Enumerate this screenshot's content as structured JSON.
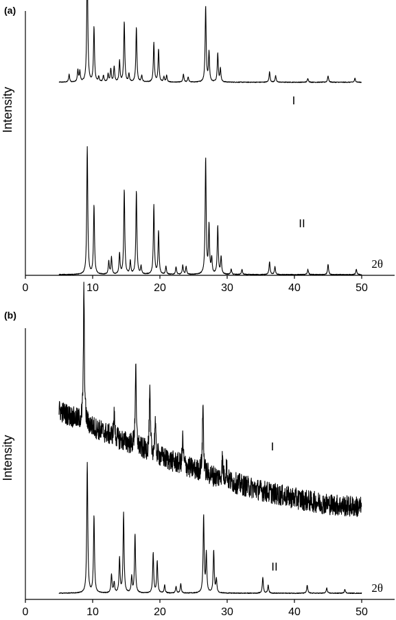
{
  "chart_data": [
    {
      "panel_label": "(a)",
      "type": "line",
      "ylabel": "Intensity",
      "xlabel": "2θ",
      "xlim": [
        0,
        55
      ],
      "xticks": [
        0,
        10,
        20,
        30,
        40,
        50
      ],
      "series": [
        {
          "name": "I",
          "x_range": [
            5,
            50
          ],
          "baseline": 0.48,
          "peaks": [
            [
              6.5,
              0.06
            ],
            [
              7.8,
              0.09
            ],
            [
              8.1,
              0.08
            ],
            [
              9.2,
              0.95
            ],
            [
              10.2,
              0.42
            ],
            [
              10.9,
              0.04
            ],
            [
              11.6,
              0.05
            ],
            [
              12.3,
              0.06
            ],
            [
              12.7,
              0.1
            ],
            [
              13.2,
              0.12
            ],
            [
              14.0,
              0.16
            ],
            [
              14.7,
              0.46
            ],
            [
              15.4,
              0.06
            ],
            [
              16.5,
              0.42
            ],
            [
              17.3,
              0.05
            ],
            [
              19.1,
              0.3
            ],
            [
              19.8,
              0.25
            ],
            [
              20.6,
              0.04
            ],
            [
              21.0,
              0.05
            ],
            [
              23.5,
              0.06
            ],
            [
              24.2,
              0.04
            ],
            [
              26.8,
              0.58
            ],
            [
              27.3,
              0.23
            ],
            [
              28.6,
              0.22
            ],
            [
              29.0,
              0.1
            ],
            [
              36.3,
              0.08
            ],
            [
              37.2,
              0.05
            ],
            [
              42.0,
              0.03
            ],
            [
              45.0,
              0.05
            ],
            [
              49.0,
              0.03
            ]
          ]
        },
        {
          "name": "II",
          "x_range": [
            5,
            50
          ],
          "baseline": 0.0,
          "peaks": [
            [
              9.2,
              0.98
            ],
            [
              10.2,
              0.53
            ],
            [
              12.4,
              0.1
            ],
            [
              12.8,
              0.13
            ],
            [
              14.0,
              0.16
            ],
            [
              14.7,
              0.65
            ],
            [
              15.6,
              0.1
            ],
            [
              16.5,
              0.64
            ],
            [
              17.2,
              0.06
            ],
            [
              19.1,
              0.53
            ],
            [
              19.8,
              0.33
            ],
            [
              20.9,
              0.06
            ],
            [
              22.4,
              0.06
            ],
            [
              23.4,
              0.07
            ],
            [
              23.9,
              0.06
            ],
            [
              26.8,
              0.89
            ],
            [
              27.3,
              0.37
            ],
            [
              27.7,
              0.12
            ],
            [
              28.6,
              0.37
            ],
            [
              29.1,
              0.13
            ],
            [
              30.6,
              0.04
            ],
            [
              32.2,
              0.04
            ],
            [
              36.3,
              0.1
            ],
            [
              37.1,
              0.06
            ],
            [
              42.0,
              0.04
            ],
            [
              45.0,
              0.08
            ],
            [
              49.2,
              0.04
            ]
          ]
        }
      ]
    },
    {
      "panel_label": "(b)",
      "type": "line",
      "ylabel": "Intensity",
      "xlabel": "2θ",
      "xlim": [
        0,
        55
      ],
      "xticks": [
        0,
        10,
        20,
        30,
        40,
        50
      ],
      "series": [
        {
          "name": "I",
          "x_range": [
            5,
            50
          ],
          "baseline_start": 0.68,
          "baseline_end": 0.32,
          "noise": 0.04,
          "peaks": [
            [
              8.7,
              0.5
            ],
            [
              13.2,
              0.08
            ],
            [
              16.4,
              0.3
            ],
            [
              18.5,
              0.22
            ],
            [
              19.3,
              0.12
            ],
            [
              23.4,
              0.1
            ],
            [
              26.4,
              0.26
            ],
            [
              29.3,
              0.08
            ],
            [
              29.9,
              0.06
            ]
          ]
        },
        {
          "name": "II",
          "x_range": [
            5,
            50
          ],
          "baseline": 0.0,
          "peaks": [
            [
              9.2,
              0.98
            ],
            [
              10.2,
              0.58
            ],
            [
              12.8,
              0.14
            ],
            [
              13.2,
              0.08
            ],
            [
              14.0,
              0.26
            ],
            [
              14.6,
              0.6
            ],
            [
              15.8,
              0.12
            ],
            [
              16.3,
              0.44
            ],
            [
              19.0,
              0.3
            ],
            [
              19.6,
              0.24
            ],
            [
              20.7,
              0.06
            ],
            [
              22.4,
              0.05
            ],
            [
              23.1,
              0.07
            ],
            [
              26.5,
              0.58
            ],
            [
              26.9,
              0.29
            ],
            [
              28.0,
              0.32
            ],
            [
              28.4,
              0.1
            ],
            [
              35.3,
              0.12
            ],
            [
              36.1,
              0.06
            ],
            [
              41.9,
              0.06
            ],
            [
              44.8,
              0.04
            ],
            [
              47.5,
              0.03
            ]
          ]
        }
      ]
    }
  ]
}
